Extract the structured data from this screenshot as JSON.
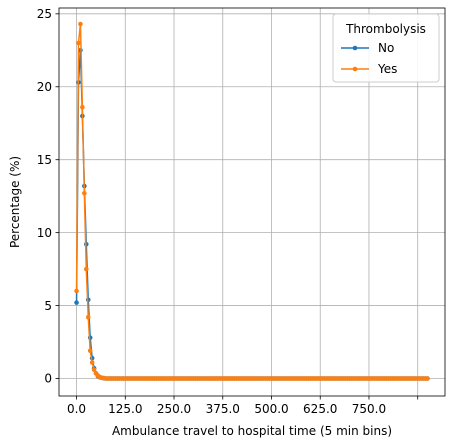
{
  "chart_data": {
    "type": "line",
    "title": "",
    "xlabel": "Ambulance travel to hospital time (5 min bins)",
    "ylabel": "Percentage (%)",
    "xlim": [
      -45,
      945
    ],
    "ylim": [
      -1.2,
      25.4
    ],
    "xticks": [
      0,
      125,
      250,
      375,
      500,
      625,
      750,
      875
    ],
    "xtick_labels": [
      "0.0",
      "125.0",
      "250.0",
      "375.0",
      "500.0",
      "625.0",
      "750.0",
      ""
    ],
    "yticks": [
      0,
      5,
      10,
      15,
      20,
      25
    ],
    "ytick_labels": [
      "0",
      "5",
      "10",
      "15",
      "20",
      "25"
    ],
    "grid": true,
    "legend": {
      "title": "Thrombolysis",
      "position": "top-right"
    },
    "x": [
      0,
      5,
      10,
      15,
      20,
      25,
      30,
      35,
      40,
      45,
      50,
      55,
      60,
      65,
      70
    ],
    "x_tail_start": 75,
    "x_tail_end": 900,
    "x_step": 5,
    "series": [
      {
        "name": "No",
        "color": "#1f77b4",
        "values": [
          5.2,
          20.3,
          22.5,
          18.0,
          13.2,
          9.2,
          5.4,
          2.8,
          1.4,
          0.7,
          0.35,
          0.15,
          0.08,
          0.04,
          0.02
        ],
        "tail_value": 0.0
      },
      {
        "name": "Yes",
        "color": "#ff7f0e",
        "values": [
          6.0,
          23.0,
          24.3,
          18.6,
          12.7,
          7.5,
          4.2,
          1.9,
          1.1,
          0.6,
          0.35,
          0.2,
          0.1,
          0.05,
          0.03
        ],
        "tail_value": 0.0
      }
    ]
  }
}
